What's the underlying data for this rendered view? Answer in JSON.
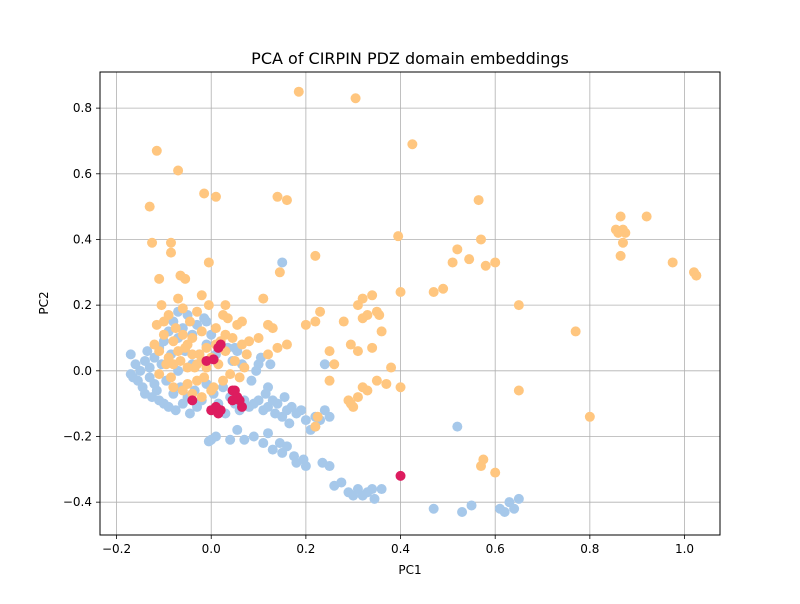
{
  "chart_data": {
    "type": "scatter",
    "title": "PCA of CIRPIN PDZ domain embeddings",
    "xlabel": "PC1",
    "ylabel": "PC2",
    "xlim": [
      -0.235,
      1.075
    ],
    "ylim": [
      -0.5,
      0.91
    ],
    "xticks": [
      -0.2,
      0.0,
      0.2,
      0.4,
      0.6,
      0.8,
      1.0
    ],
    "yticks": [
      -0.4,
      -0.2,
      0.0,
      0.2,
      0.4,
      0.6,
      0.8
    ],
    "xtick_labels": [
      "−0.2",
      "0.0",
      "0.2",
      "0.4",
      "0.6",
      "0.8",
      "1.0"
    ],
    "ytick_labels": [
      "−0.4",
      "−0.2",
      "0.0",
      "0.2",
      "0.4",
      "0.6",
      "0.8"
    ],
    "grid": true,
    "legend": "none",
    "series": [
      {
        "color": "#a6c8ea",
        "points": [
          [
            -0.17,
            0.05
          ],
          [
            -0.17,
            -0.01
          ],
          [
            -0.165,
            -0.02
          ],
          [
            -0.16,
            0.02
          ],
          [
            -0.155,
            -0.03
          ],
          [
            -0.15,
            0.0
          ],
          [
            -0.145,
            -0.05
          ],
          [
            -0.14,
            0.03
          ],
          [
            -0.14,
            -0.07
          ],
          [
            -0.135,
            0.06
          ],
          [
            -0.13,
            -0.02
          ],
          [
            -0.13,
            0.01
          ],
          [
            -0.125,
            -0.08
          ],
          [
            -0.12,
            0.04
          ],
          [
            -0.12,
            -0.04
          ],
          [
            -0.115,
            -0.06
          ],
          [
            -0.11,
            0.07
          ],
          [
            -0.11,
            -0.09
          ],
          [
            -0.105,
            0.02
          ],
          [
            -0.1,
            -0.1
          ],
          [
            -0.1,
            0.09
          ],
          [
            -0.095,
            -0.03
          ],
          [
            -0.09,
            -0.11
          ],
          [
            -0.09,
            0.12
          ],
          [
            -0.085,
            0.05
          ],
          [
            -0.08,
            -0.07
          ],
          [
            -0.08,
            0.15
          ],
          [
            -0.075,
            -0.12
          ],
          [
            -0.07,
            0.0
          ],
          [
            -0.07,
            0.1
          ],
          [
            -0.065,
            -0.05
          ],
          [
            -0.06,
            0.13
          ],
          [
            -0.06,
            -0.1
          ],
          [
            -0.055,
            0.06
          ],
          [
            -0.05,
            -0.08
          ],
          [
            -0.05,
            0.17
          ],
          [
            -0.045,
            -0.13
          ],
          [
            -0.04,
            0.02
          ],
          [
            -0.04,
            0.11
          ],
          [
            -0.035,
            -0.06
          ],
          [
            -0.03,
            0.14
          ],
          [
            -0.03,
            -0.11
          ],
          [
            -0.025,
            0.05
          ],
          [
            -0.02,
            -0.09
          ],
          [
            -0.015,
            0.16
          ],
          [
            -0.01,
            -0.04
          ],
          [
            -0.01,
            0.08
          ],
          [
            0.0,
            -0.12
          ],
          [
            0.0,
            0.11
          ],
          [
            0.005,
            -0.07
          ],
          [
            0.01,
            0.05
          ],
          [
            0.015,
            -0.1
          ],
          [
            0.02,
            0.09
          ],
          [
            0.025,
            -0.05
          ],
          [
            0.03,
            -0.13
          ],
          [
            0.035,
            0.07
          ],
          [
            0.04,
            -0.08
          ],
          [
            0.045,
            0.03
          ],
          [
            0.05,
            -0.1
          ],
          [
            0.055,
            0.06
          ],
          [
            0.06,
            -0.12
          ],
          [
            0.065,
            0.02
          ],
          [
            0.07,
            -0.09
          ],
          [
            0.075,
            0.05
          ],
          [
            0.08,
            -0.11
          ],
          [
            0.085,
            -0.03
          ],
          [
            0.09,
            -0.1
          ],
          [
            0.095,
            0.0
          ],
          [
            0.1,
            -0.09
          ],
          [
            0.105,
            0.04
          ],
          [
            0.11,
            -0.12
          ],
          [
            0.115,
            -0.07
          ],
          [
            0.12,
            -0.11
          ],
          [
            0.125,
            0.02
          ],
          [
            0.13,
            -0.09
          ],
          [
            0.135,
            -0.13
          ],
          [
            0.14,
            -0.1
          ],
          [
            0.15,
            -0.14
          ],
          [
            0.155,
            -0.08
          ],
          [
            0.16,
            -0.12
          ],
          [
            0.165,
            -0.16
          ],
          [
            0.17,
            -0.11
          ],
          [
            0.18,
            -0.13
          ],
          [
            0.19,
            -0.12
          ],
          [
            0.2,
            -0.15
          ],
          [
            0.21,
            -0.18
          ],
          [
            0.22,
            -0.14
          ],
          [
            0.23,
            -0.15
          ],
          [
            0.24,
            -0.12
          ],
          [
            0.25,
            -0.14
          ],
          [
            0.0,
            -0.21
          ],
          [
            -0.005,
            -0.215
          ],
          [
            0.01,
            -0.2
          ],
          [
            0.04,
            -0.21
          ],
          [
            0.055,
            -0.18
          ],
          [
            0.07,
            -0.21
          ],
          [
            0.09,
            -0.2
          ],
          [
            0.11,
            -0.22
          ],
          [
            0.12,
            -0.19
          ],
          [
            0.13,
            -0.24
          ],
          [
            0.145,
            -0.22
          ],
          [
            0.15,
            -0.25
          ],
          [
            0.16,
            -0.23
          ],
          [
            0.175,
            -0.26
          ],
          [
            0.18,
            -0.28
          ],
          [
            0.195,
            -0.27
          ],
          [
            0.2,
            -0.29
          ],
          [
            0.235,
            -0.28
          ],
          [
            0.25,
            -0.29
          ],
          [
            0.26,
            -0.35
          ],
          [
            0.275,
            -0.34
          ],
          [
            0.29,
            -0.37
          ],
          [
            0.3,
            -0.38
          ],
          [
            0.31,
            -0.36
          ],
          [
            0.32,
            -0.38
          ],
          [
            0.33,
            -0.37
          ],
          [
            0.34,
            -0.36
          ],
          [
            0.345,
            -0.39
          ],
          [
            0.36,
            -0.36
          ],
          [
            0.47,
            -0.42
          ],
          [
            0.52,
            -0.17
          ],
          [
            0.53,
            -0.43
          ],
          [
            0.55,
            -0.41
          ],
          [
            0.61,
            -0.42
          ],
          [
            0.62,
            -0.43
          ],
          [
            0.63,
            -0.4
          ],
          [
            0.64,
            -0.42
          ],
          [
            0.65,
            -0.39
          ],
          [
            0.15,
            0.33
          ],
          [
            0.22,
            -0.17
          ],
          [
            0.24,
            0.02
          ],
          [
            0.12,
            -0.05
          ],
          [
            0.1,
            0.02
          ],
          [
            0.05,
            0.07
          ],
          [
            -0.01,
            0.15
          ],
          [
            -0.07,
            0.18
          ]
        ]
      },
      {
        "color": "#ffc67f",
        "points": [
          [
            -0.12,
            0.08
          ],
          [
            -0.115,
            0.14
          ],
          [
            -0.11,
            0.06
          ],
          [
            -0.105,
            0.2
          ],
          [
            -0.1,
            0.11
          ],
          [
            -0.095,
            0.02
          ],
          [
            -0.09,
            0.17
          ],
          [
            -0.085,
            -0.02
          ],
          [
            -0.08,
            0.09
          ],
          [
            -0.075,
            0.13
          ],
          [
            -0.07,
            0.22
          ],
          [
            -0.065,
            0.03
          ],
          [
            -0.06,
            0.19
          ],
          [
            -0.055,
            0.07
          ],
          [
            -0.05,
            -0.04
          ],
          [
            -0.045,
            0.15
          ],
          [
            -0.04,
            0.1
          ],
          [
            -0.035,
            0.01
          ],
          [
            -0.03,
            0.18
          ],
          [
            -0.025,
            0.05
          ],
          [
            -0.02,
            0.12
          ],
          [
            -0.015,
            -0.02
          ],
          [
            -0.01,
            0.07
          ],
          [
            -0.005,
            0.2
          ],
          [
            0.0,
            0.04
          ],
          [
            0.005,
            -0.05
          ],
          [
            0.01,
            0.13
          ],
          [
            0.015,
            0.02
          ],
          [
            0.02,
            0.09
          ],
          [
            0.025,
            -0.03
          ],
          [
            0.03,
            0.06
          ],
          [
            0.035,
            0.16
          ],
          [
            0.04,
            -0.01
          ],
          [
            0.045,
            0.1
          ],
          [
            0.05,
            0.03
          ],
          [
            0.055,
            0.14
          ],
          [
            0.06,
            -0.02
          ],
          [
            0.065,
            0.08
          ],
          [
            0.07,
            0.01
          ],
          [
            0.075,
            0.05
          ],
          [
            -0.09,
            0.04
          ],
          [
            -0.08,
            -0.05
          ],
          [
            -0.07,
            0.06
          ],
          [
            -0.06,
            -0.06
          ],
          [
            -0.05,
            0.08
          ],
          [
            -0.04,
            -0.07
          ],
          [
            -0.03,
            0.02
          ],
          [
            -0.02,
            -0.08
          ],
          [
            -0.01,
            0.01
          ],
          [
            0.0,
            -0.06
          ],
          [
            -0.11,
            -0.01
          ],
          [
            -0.1,
            0.15
          ],
          [
            -0.06,
            0.11
          ],
          [
            -0.04,
            0.05
          ],
          [
            -0.02,
            0.03
          ],
          [
            0.01,
            0.08
          ],
          [
            0.03,
            0.11
          ],
          [
            -0.08,
            0.02
          ],
          [
            -0.05,
            0.01
          ],
          [
            -0.03,
            -0.03
          ],
          [
            -0.13,
            0.5
          ],
          [
            -0.115,
            0.67
          ],
          [
            -0.07,
            0.61
          ],
          [
            -0.125,
            0.39
          ],
          [
            -0.085,
            0.39
          ],
          [
            -0.085,
            0.36
          ],
          [
            -0.11,
            0.28
          ],
          [
            -0.065,
            0.29
          ],
          [
            -0.055,
            0.28
          ],
          [
            -0.015,
            0.54
          ],
          [
            0.01,
            0.53
          ],
          [
            -0.005,
            0.33
          ],
          [
            0.14,
            0.53
          ],
          [
            0.16,
            0.52
          ],
          [
            0.145,
            0.3
          ],
          [
            0.185,
            0.85
          ],
          [
            0.305,
            0.83
          ],
          [
            0.425,
            0.69
          ],
          [
            0.22,
            0.35
          ],
          [
            0.565,
            0.52
          ],
          [
            0.395,
            0.41
          ],
          [
            0.52,
            0.37
          ],
          [
            0.57,
            0.4
          ],
          [
            0.545,
            0.34
          ],
          [
            0.51,
            0.33
          ],
          [
            0.58,
            0.32
          ],
          [
            0.6,
            0.33
          ],
          [
            0.47,
            0.24
          ],
          [
            0.49,
            0.25
          ],
          [
            0.65,
            0.2
          ],
          [
            0.855,
            0.43
          ],
          [
            0.865,
            0.47
          ],
          [
            0.87,
            0.43
          ],
          [
            0.875,
            0.42
          ],
          [
            0.86,
            0.42
          ],
          [
            0.87,
            0.39
          ],
          [
            0.865,
            0.35
          ],
          [
            0.92,
            0.47
          ],
          [
            0.975,
            0.33
          ],
          [
            1.02,
            0.3
          ],
          [
            1.025,
            0.29
          ],
          [
            0.77,
            0.12
          ],
          [
            0.8,
            -0.14
          ],
          [
            0.65,
            -0.06
          ],
          [
            0.575,
            -0.27
          ],
          [
            0.57,
            -0.29
          ],
          [
            0.6,
            -0.31
          ],
          [
            0.03,
            0.2
          ],
          [
            0.11,
            0.22
          ],
          [
            0.12,
            0.14
          ],
          [
            0.13,
            0.13
          ],
          [
            0.14,
            0.07
          ],
          [
            0.16,
            0.08
          ],
          [
            0.2,
            0.14
          ],
          [
            0.22,
            0.15
          ],
          [
            0.23,
            0.18
          ],
          [
            0.28,
            0.15
          ],
          [
            0.31,
            0.2
          ],
          [
            0.32,
            0.22
          ],
          [
            0.34,
            0.23
          ],
          [
            0.35,
            0.18
          ],
          [
            0.355,
            0.17
          ],
          [
            0.33,
            0.17
          ],
          [
            0.32,
            0.16
          ],
          [
            0.36,
            0.12
          ],
          [
            0.295,
            0.08
          ],
          [
            0.31,
            0.06
          ],
          [
            0.32,
            -0.05
          ],
          [
            0.33,
            -0.06
          ],
          [
            0.35,
            -0.03
          ],
          [
            0.37,
            -0.04
          ],
          [
            0.4,
            -0.05
          ],
          [
            0.38,
            0.01
          ],
          [
            0.4,
            0.24
          ],
          [
            0.34,
            0.07
          ],
          [
            0.25,
            0.06
          ],
          [
            0.26,
            0.02
          ],
          [
            0.25,
            -0.03
          ],
          [
            0.29,
            -0.09
          ],
          [
            0.3,
            -0.11
          ],
          [
            0.295,
            -0.1
          ],
          [
            0.31,
            -0.08
          ],
          [
            0.22,
            -0.17
          ],
          [
            0.225,
            -0.14
          ],
          [
            0.1,
            0.1
          ],
          [
            0.08,
            0.09
          ],
          [
            0.12,
            0.05
          ],
          [
            0.065,
            0.15
          ],
          [
            0.025,
            0.17
          ],
          [
            -0.02,
            0.23
          ]
        ]
      },
      {
        "color": "#dd1c5f",
        "points": [
          [
            -0.01,
            0.03
          ],
          [
            0.005,
            0.035
          ],
          [
            0.015,
            0.07
          ],
          [
            0.02,
            0.08
          ],
          [
            0.045,
            -0.06
          ],
          [
            0.05,
            -0.06
          ],
          [
            0.055,
            -0.08
          ],
          [
            0.06,
            -0.09
          ],
          [
            0.065,
            -0.11
          ],
          [
            0.045,
            -0.09
          ],
          [
            0.0,
            -0.12
          ],
          [
            0.015,
            -0.13
          ],
          [
            0.02,
            -0.12
          ],
          [
            0.01,
            -0.11
          ],
          [
            -0.04,
            -0.09
          ],
          [
            0.4,
            -0.32
          ]
        ]
      }
    ]
  }
}
